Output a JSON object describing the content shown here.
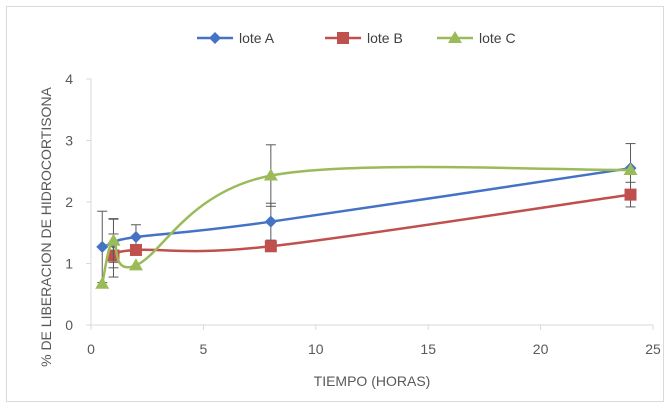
{
  "chart_data": {
    "type": "scatter",
    "title": "",
    "xlabel": "TIEMPO (HORAS)",
    "ylabel": "% DE LIBERACION DE HIDROCORTISONA",
    "xlim": [
      0,
      25
    ],
    "ylim": [
      0,
      4
    ],
    "x_ticks": [
      "0",
      "5",
      "10",
      "15",
      "20",
      "25"
    ],
    "y_ticks": [
      "0",
      "1",
      "2",
      "3",
      "4"
    ],
    "grid": false,
    "legend_position": "top",
    "smoothed_lines": true,
    "series": [
      {
        "name": "lote A",
        "color": "#4472C4",
        "marker": "diamond",
        "x": [
          0.5,
          1,
          2,
          8,
          24
        ],
        "y": [
          1.27,
          1.33,
          1.43,
          1.68,
          2.55
        ],
        "error": [
          0.58,
          0.4,
          0.2,
          0.3,
          0.4
        ]
      },
      {
        "name": "lote B",
        "color": "#C0504D",
        "marker": "square",
        "x": [
          1,
          2,
          8,
          24
        ],
        "y": [
          1.13,
          1.22,
          1.28,
          2.12
        ],
        "error": [
          0.35,
          0.0,
          0.0,
          0.2
        ]
      },
      {
        "name": "lote C",
        "color": "#9BBB59",
        "marker": "triangle",
        "x": [
          0.5,
          1,
          2,
          8,
          24
        ],
        "y": [
          0.67,
          1.37,
          0.97,
          2.43,
          2.52
        ],
        "error": [
          0.0,
          0.35,
          0.0,
          0.5,
          0.0
        ]
      }
    ]
  }
}
